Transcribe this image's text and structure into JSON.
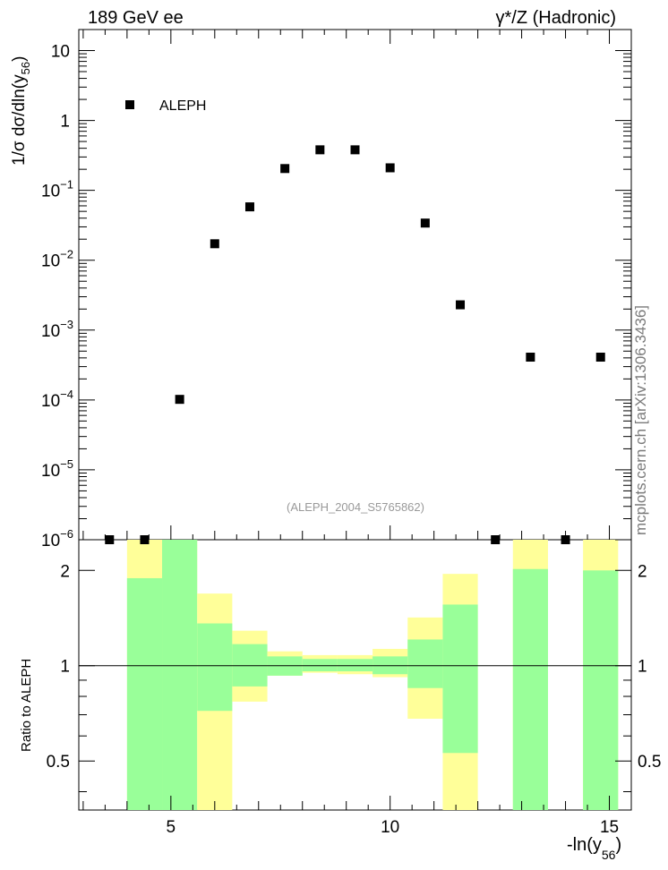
{
  "header": {
    "left": "189 GeV ee",
    "right": "γ*/Z (Hadronic)"
  },
  "side_label": "mcplots.cern.ch [arXiv:1306.3436]",
  "analysis_tag": "(ALEPH_2004_S5765862)",
  "colors": {
    "band_inner": "#99ff99",
    "band_outer": "#ffff99",
    "marker": "#000000",
    "tag_text": "#999999"
  },
  "chart_data": [
    {
      "type": "scatter",
      "panel": "main",
      "ylog": true,
      "xlim": [
        2.9,
        15.5
      ],
      "ylim": [
        1e-06,
        20
      ],
      "xlabel": "",
      "ylabel": "1/σ dσ/dln(y56)",
      "yticks": [
        {
          "v": 10,
          "base": "10",
          "exp": ""
        },
        {
          "v": 1,
          "base": "1",
          "exp": ""
        },
        {
          "v": 0.1,
          "base": "10",
          "exp": "−1"
        },
        {
          "v": 0.01,
          "base": "10",
          "exp": "−2"
        },
        {
          "v": 0.001,
          "base": "10",
          "exp": "−3"
        },
        {
          "v": 0.0001,
          "base": "10",
          "exp": "−4"
        },
        {
          "v": 1e-05,
          "base": "10",
          "exp": "−5"
        },
        {
          "v": 1e-06,
          "base": "10",
          "exp": "−6"
        }
      ],
      "legend": "ALEPH",
      "series": [
        {
          "name": "ALEPH",
          "x": [
            3.6,
            4.4,
            5.2,
            6.0,
            6.8,
            7.6,
            8.4,
            9.2,
            10.0,
            10.8,
            11.6,
            12.4,
            13.2,
            14.0,
            14.8
          ],
          "y": [
            1e-06,
            1e-06,
            0.000102,
            0.0172,
            0.058,
            0.205,
            0.38,
            0.38,
            0.21,
            0.034,
            0.0023,
            1e-06,
            0.00041,
            1e-06,
            0.00041
          ]
        }
      ]
    },
    {
      "type": "bar",
      "panel": "ratio",
      "ylog": true,
      "xlim": [
        2.9,
        15.5
      ],
      "ylim": [
        0.35,
        2.5
      ],
      "xlabel": "-ln(y56)",
      "ylabel": "Ratio to ALEPH",
      "xticks": [
        5,
        10,
        15
      ],
      "yticks": [
        0.5,
        1,
        2
      ],
      "reference_line": 1,
      "bins": [
        {
          "x0": 4.0,
          "x1": 4.8,
          "inner": [
            0.3,
            1.89
          ],
          "outer": [
            0.3,
            2.5
          ]
        },
        {
          "x0": 4.8,
          "x1": 5.6,
          "inner": [
            0.3,
            2.5
          ],
          "outer": [
            0.3,
            2.5
          ]
        },
        {
          "x0": 5.6,
          "x1": 6.4,
          "inner": [
            0.72,
            1.36
          ],
          "outer": [
            0.3,
            1.69
          ]
        },
        {
          "x0": 6.4,
          "x1": 7.2,
          "inner": [
            0.86,
            1.17
          ],
          "outer": [
            0.77,
            1.29
          ]
        },
        {
          "x0": 7.2,
          "x1": 8.0,
          "inner": [
            0.93,
            1.07
          ],
          "outer": [
            0.93,
            1.11
          ]
        },
        {
          "x0": 8.0,
          "x1": 8.8,
          "inner": [
            0.96,
            1.05
          ],
          "outer": [
            0.95,
            1.08
          ]
        },
        {
          "x0": 8.8,
          "x1": 9.6,
          "inner": [
            0.96,
            1.05
          ],
          "outer": [
            0.94,
            1.08
          ]
        },
        {
          "x0": 9.6,
          "x1": 10.4,
          "inner": [
            0.94,
            1.07
          ],
          "outer": [
            0.92,
            1.13
          ]
        },
        {
          "x0": 10.4,
          "x1": 11.2,
          "inner": [
            0.85,
            1.21
          ],
          "outer": [
            0.68,
            1.42
          ]
        },
        {
          "x0": 11.2,
          "x1": 12.0,
          "inner": [
            0.53,
            1.56
          ],
          "outer": [
            0.3,
            1.95
          ]
        },
        {
          "x0": 12.8,
          "x1": 13.6,
          "inner": [
            0.3,
            2.02
          ],
          "outer": [
            0.3,
            2.5
          ]
        },
        {
          "x0": 14.4,
          "x1": 15.2,
          "inner": [
            0.3,
            2.0
          ],
          "outer": [
            0.3,
            2.5
          ]
        }
      ]
    }
  ]
}
